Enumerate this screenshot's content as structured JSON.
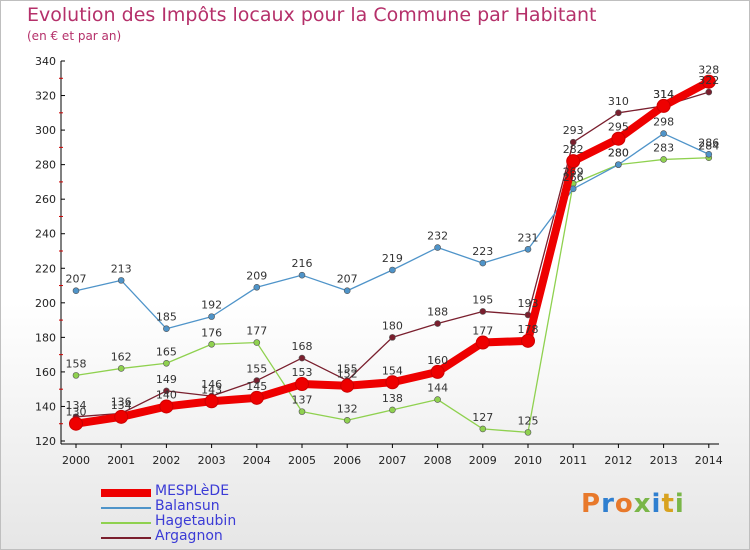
{
  "title": "Evolution des Impôts locaux pour la Commune par Habitant",
  "subtitle": "(en € et par an)",
  "logo": {
    "text": "Proxiti",
    "colors": [
      "#e8792b",
      "#2f7fd0",
      "#e8792b",
      "#7ab648",
      "#2f7fd0",
      "#d8a21f",
      "#7ab648"
    ]
  },
  "chart_data": {
    "type": "line",
    "title": "Evolution des Impôts locaux pour la Commune par Habitant",
    "subtitle": "(en € et par an)",
    "xlabel": "",
    "ylabel": "",
    "x": [
      "2000",
      "2001",
      "2002",
      "2003",
      "2004",
      "2005",
      "2006",
      "2007",
      "2008",
      "2009",
      "2010",
      "2011",
      "2012",
      "2013",
      "2014"
    ],
    "ylim": [
      120,
      340
    ],
    "yticks": [
      "120",
      "140",
      "160",
      "180",
      "200",
      "220",
      "240",
      "260",
      "280",
      "300",
      "320",
      "340"
    ],
    "grid": false,
    "legend_position": "bottom-left",
    "series": [
      {
        "name": "Argagnon",
        "color": "#7a1f2e",
        "values": [
          134,
          136,
          149,
          146,
          155,
          168,
          155,
          180,
          188,
          195,
          193,
          293,
          310,
          314,
          322
        ]
      },
      {
        "name": "Hagetaubin",
        "color": "#8fd14f",
        "values": [
          158,
          162,
          165,
          176,
          177,
          137,
          132,
          138,
          144,
          127,
          125,
          269,
          280,
          283,
          284
        ]
      },
      {
        "name": "Balansun",
        "color": "#4f94c9",
        "values": [
          207,
          213,
          185,
          192,
          209,
          216,
          207,
          219,
          232,
          223,
          231,
          266,
          280,
          298,
          286
        ]
      },
      {
        "name": "MESPLèDE",
        "color": "#ee0000",
        "values": [
          130,
          134,
          140,
          143,
          145,
          153,
          152,
          154,
          160,
          177,
          178,
          282,
          295,
          314,
          328
        ]
      }
    ],
    "labels": [
      {
        "series": "Argagnon",
        "text": [
          "134",
          "136",
          "149",
          "146",
          "155",
          "168",
          "155",
          "180",
          "188",
          "195",
          "193",
          "293",
          "310",
          "314",
          "322"
        ]
      },
      {
        "series": "Hagetaubin",
        "text": [
          "158",
          "162",
          "165",
          "176",
          "177",
          "137",
          "132",
          "138",
          "144",
          "127",
          "125",
          "269",
          "280",
          "283",
          "284"
        ]
      },
      {
        "series": "Balansun",
        "text": [
          "207",
          "213",
          "185",
          "192",
          "209",
          "216",
          "207",
          "219",
          "232",
          "223",
          "231",
          "266",
          "280",
          "298",
          "286"
        ]
      },
      {
        "series": "MESPLèDE",
        "text": [
          "130",
          "134",
          "140",
          "143",
          "145",
          "153",
          "152",
          "154",
          "160",
          "177",
          "178",
          "282",
          "295",
          "314",
          "328"
        ]
      }
    ]
  },
  "legend": [
    {
      "label": "MESPLèDE",
      "color": "#ee0000",
      "thick": true
    },
    {
      "label": "Balansun",
      "color": "#4f94c9",
      "thick": false
    },
    {
      "label": "Hagetaubin",
      "color": "#8fd14f",
      "thick": false
    },
    {
      "label": "Argagnon",
      "color": "#7a1f2e",
      "thick": false
    }
  ]
}
